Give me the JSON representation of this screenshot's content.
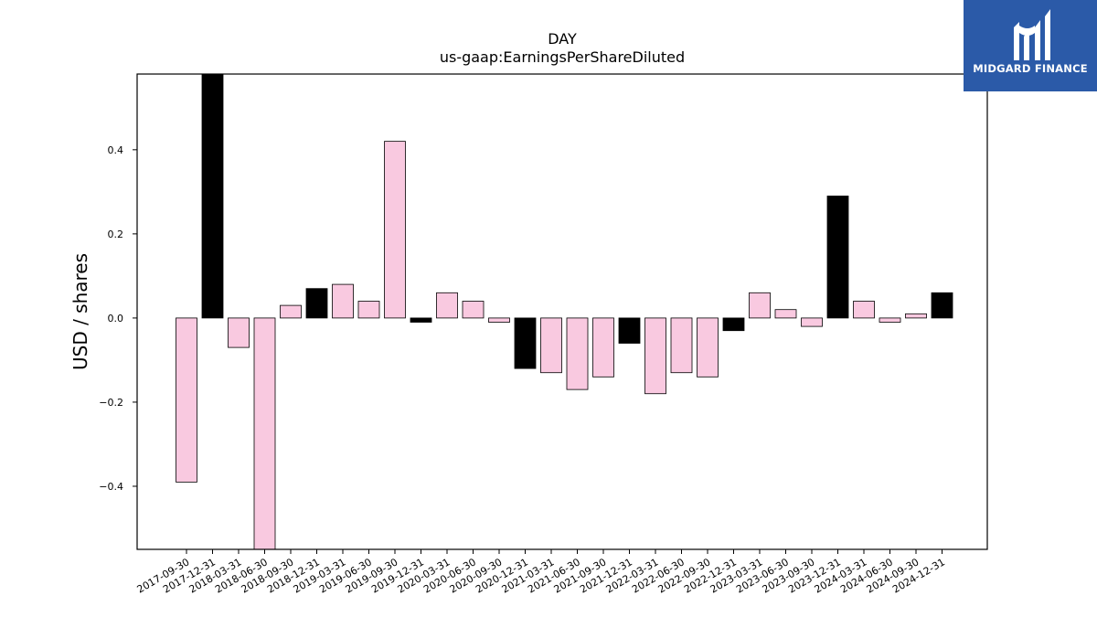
{
  "logo": {
    "text": "MIDGARD FINANCE",
    "icon": "midgard-m-icon",
    "color": "#2b5aa8"
  },
  "chart_data": {
    "type": "bar",
    "title": "DAY",
    "subtitle": "us-gaap:EarningsPerShareDiluted",
    "xlabel": "",
    "ylabel": "USD / shares",
    "ylim": [
      -0.55,
      0.58
    ],
    "yticks": [
      -0.4,
      -0.2,
      0.0,
      0.2,
      0.4
    ],
    "ytick_labels": [
      "−0.4",
      "−0.2",
      "0.0",
      "0.2",
      "0.4"
    ],
    "grid": false,
    "colors": {
      "quarter": "#f9c9e0",
      "fiscal_year_end": "#000000"
    },
    "categories": [
      "2017-09-30",
      "2017-12-31",
      "2018-03-31",
      "2018-06-30",
      "2018-09-30",
      "2018-12-31",
      "2019-03-31",
      "2019-06-30",
      "2019-09-30",
      "2019-12-31",
      "2020-03-31",
      "2020-06-30",
      "2020-09-30",
      "2020-12-31",
      "2021-03-31",
      "2021-06-30",
      "2021-09-30",
      "2021-12-31",
      "2022-03-31",
      "2022-06-30",
      "2022-09-30",
      "2022-12-31",
      "2023-03-31",
      "2023-06-30",
      "2023-09-30",
      "2023-12-31",
      "2024-03-31",
      "2024-06-30",
      "2024-09-30",
      "2024-12-31"
    ],
    "values": [
      -0.39,
      0.64,
      -0.07,
      -0.58,
      0.03,
      0.07,
      0.08,
      0.04,
      0.42,
      -0.01,
      0.06,
      0.04,
      -0.01,
      -0.12,
      -0.13,
      -0.17,
      -0.14,
      -0.06,
      -0.18,
      -0.13,
      -0.14,
      -0.03,
      0.06,
      0.02,
      -0.02,
      0.29,
      0.04,
      -0.01,
      0.01,
      0.06
    ],
    "highlight": [
      false,
      true,
      false,
      false,
      false,
      true,
      false,
      false,
      false,
      true,
      false,
      false,
      false,
      true,
      false,
      false,
      false,
      true,
      false,
      false,
      false,
      true,
      false,
      false,
      false,
      true,
      false,
      false,
      false,
      true
    ]
  }
}
